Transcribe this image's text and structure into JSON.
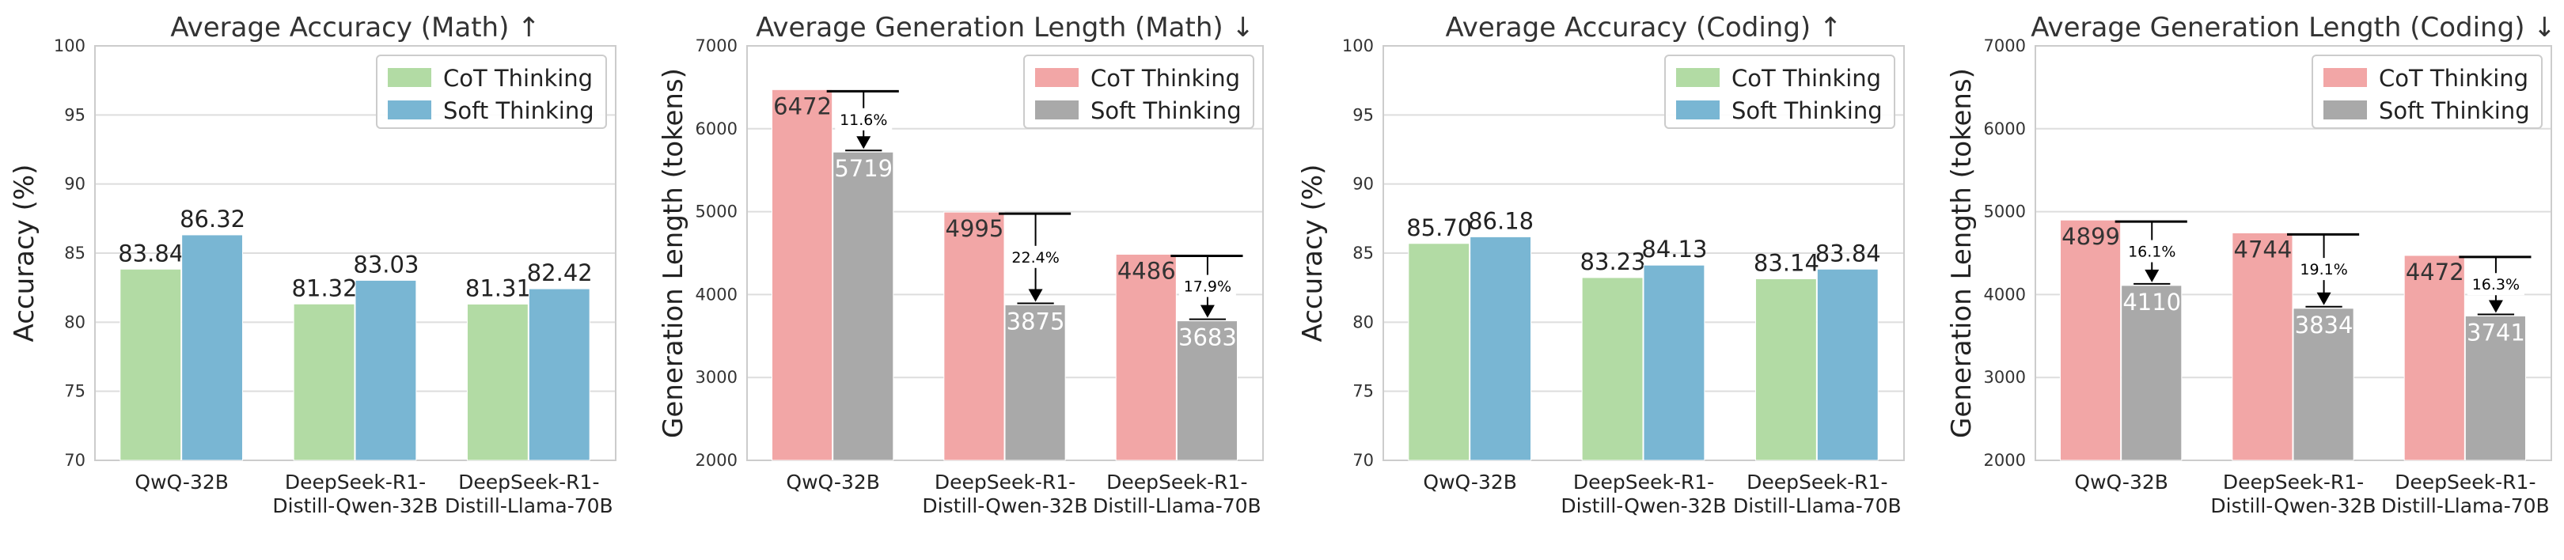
{
  "colors": {
    "cot_accuracy": "#b2dba4",
    "soft_accuracy": "#79b6d3",
    "cot_length": "#f2a6a6",
    "soft_length": "#a9a9a9",
    "grid": "#dddddd",
    "frame": "#cccccc"
  },
  "chart_data": [
    {
      "type": "bar",
      "title": "Average Accuracy (Math) ↑",
      "ylabel": "Accuracy (%)",
      "ylim": [
        70,
        100
      ],
      "yticks": [
        70,
        75,
        80,
        85,
        90,
        95,
        100
      ],
      "categories": [
        "QwQ-32B",
        "DeepSeek-R1-\nDistill-Qwen-32B",
        "DeepSeek-R1-\nDistill-Llama-70B"
      ],
      "series": [
        {
          "name": "CoT Thinking",
          "values": [
            83.84,
            81.32,
            81.31
          ]
        },
        {
          "name": "Soft Thinking",
          "values": [
            86.32,
            83.03,
            82.42
          ]
        }
      ],
      "data_labels": [
        [
          "83.84",
          "81.32",
          "81.31"
        ],
        [
          "86.32",
          "83.03",
          "82.42"
        ]
      ],
      "legend": "top-right",
      "grid": true
    },
    {
      "type": "bar",
      "title": "Average Generation Length (Math) ↓",
      "ylabel": "Generation Length (tokens)",
      "ylim": [
        2000,
        7000
      ],
      "yticks": [
        2000,
        3000,
        4000,
        5000,
        6000,
        7000
      ],
      "categories": [
        "QwQ-32B",
        "DeepSeek-R1-\nDistill-Qwen-32B",
        "DeepSeek-R1-\nDistill-Llama-70B"
      ],
      "series": [
        {
          "name": "CoT Thinking",
          "values": [
            6472,
            4995,
            4486
          ]
        },
        {
          "name": "Soft Thinking",
          "values": [
            5719,
            3875,
            3683
          ]
        }
      ],
      "data_labels": [
        [
          "6472",
          "4995",
          "4486"
        ],
        [
          "5719",
          "3875",
          "3683"
        ]
      ],
      "reductions": [
        "11.6%",
        "22.4%",
        "17.9%"
      ],
      "legend": "top-right",
      "grid": true
    },
    {
      "type": "bar",
      "title": "Average Accuracy (Coding) ↑",
      "ylabel": "Accuracy (%)",
      "ylim": [
        70,
        100
      ],
      "yticks": [
        70,
        75,
        80,
        85,
        90,
        95,
        100
      ],
      "categories": [
        "QwQ-32B",
        "DeepSeek-R1-\nDistill-Qwen-32B",
        "DeepSeek-R1-\nDistill-Llama-70B"
      ],
      "series": [
        {
          "name": "CoT Thinking",
          "values": [
            85.7,
            83.23,
            83.14
          ]
        },
        {
          "name": "Soft Thinking",
          "values": [
            86.18,
            84.13,
            83.84
          ]
        }
      ],
      "data_labels": [
        [
          "85.70",
          "83.23",
          "83.14"
        ],
        [
          "86.18",
          "84.13",
          "83.84"
        ]
      ],
      "legend": "top-right",
      "grid": true
    },
    {
      "type": "bar",
      "title": "Average Generation Length (Coding) ↓",
      "ylabel": "Generation Length (tokens)",
      "ylim": [
        2000,
        7000
      ],
      "yticks": [
        2000,
        3000,
        4000,
        5000,
        6000,
        7000
      ],
      "categories": [
        "QwQ-32B",
        "DeepSeek-R1-\nDistill-Qwen-32B",
        "DeepSeek-R1-\nDistill-Llama-70B"
      ],
      "series": [
        {
          "name": "CoT Thinking",
          "values": [
            4899,
            4744,
            4472
          ]
        },
        {
          "name": "Soft Thinking",
          "values": [
            4110,
            3834,
            3741
          ]
        }
      ],
      "data_labels": [
        [
          "4899",
          "4744",
          "4472"
        ],
        [
          "4110",
          "3834",
          "3741"
        ]
      ],
      "reductions": [
        "16.1%",
        "19.1%",
        "16.3%"
      ],
      "legend": "top-right",
      "grid": true
    }
  ]
}
